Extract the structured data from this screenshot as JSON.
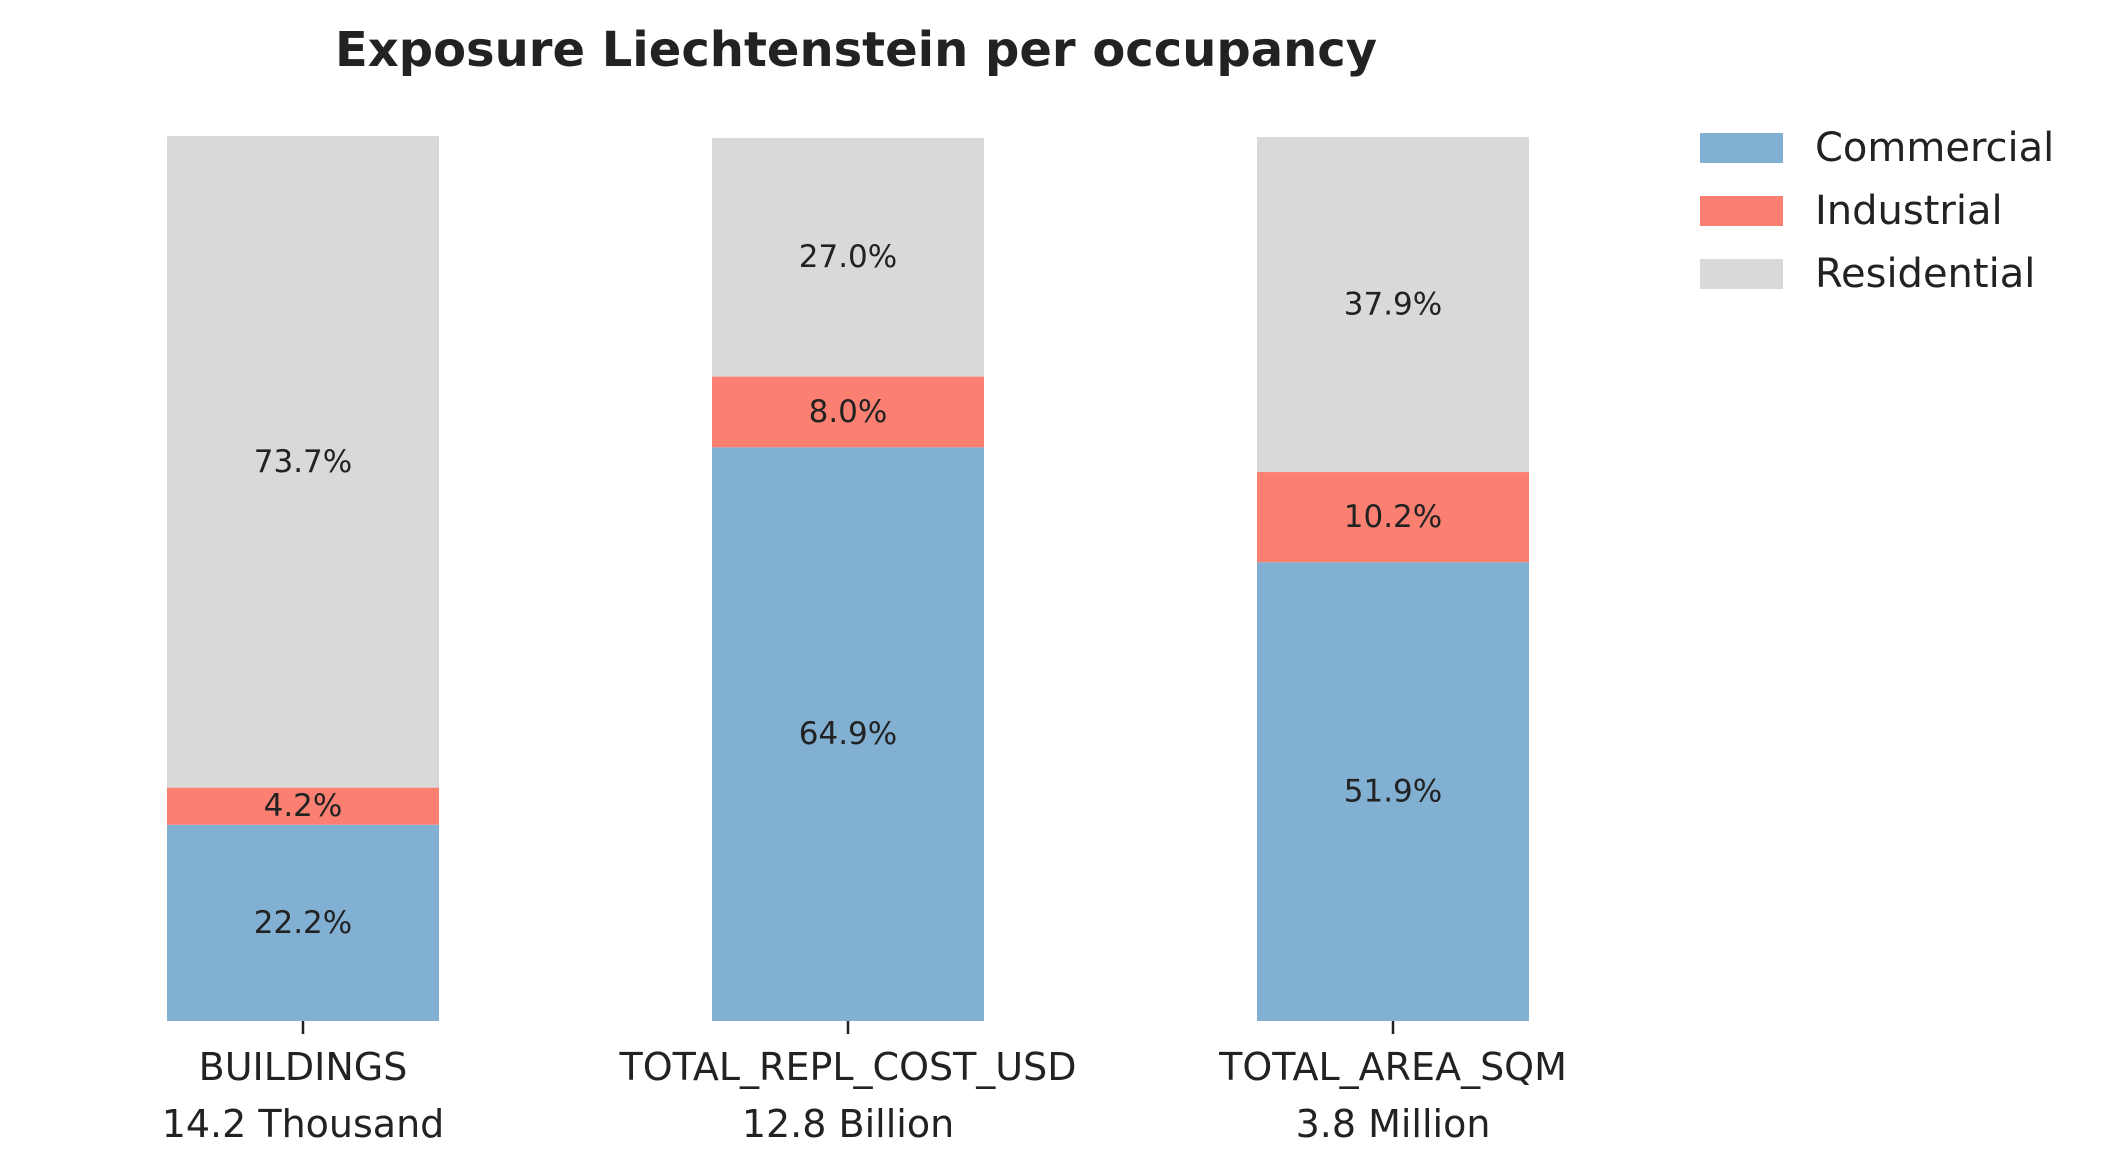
{
  "chart_data": {
    "type": "bar",
    "stacked": true,
    "normalized": true,
    "title": "Exposure Liechtenstein per occupancy",
    "xlabel": "",
    "ylabel": "",
    "ylim": [
      0,
      100
    ],
    "grid": false,
    "legend_position": "top-right",
    "categories": [
      "BUILDINGS",
      "TOTAL_REPL_COST_USD",
      "TOTAL_AREA_SQM"
    ],
    "category_totals": [
      "14.2 Thousand",
      "12.8 Billion",
      "3.8 Million"
    ],
    "series": [
      {
        "name": "Commercial",
        "color": "#82b0d3",
        "values": [
          22.2,
          64.9,
          51.9
        ],
        "labels": [
          "22.2%",
          "64.9%",
          "51.9%"
        ]
      },
      {
        "name": "Industrial",
        "color": "#fb8072",
        "values": [
          4.2,
          8.0,
          10.2
        ],
        "labels": [
          "4.2%",
          "8.0%",
          "10.2%"
        ]
      },
      {
        "name": "Residential",
        "color": "#d9d9d9",
        "values": [
          73.7,
          27.0,
          37.9
        ],
        "labels": [
          "73.7%",
          "27.0%",
          "37.9%"
        ]
      }
    ]
  }
}
